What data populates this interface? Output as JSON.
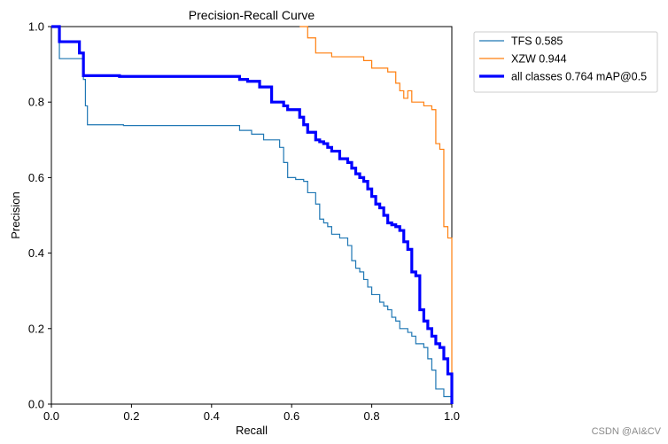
{
  "chart_data": {
    "type": "line",
    "title": "Precision-Recall Curve",
    "xlabel": "Recall",
    "ylabel": "Precision",
    "xlim": [
      0,
      1
    ],
    "ylim": [
      0,
      1
    ],
    "xticks": [
      "0.0",
      "0.2",
      "0.4",
      "0.6",
      "0.8",
      "1.0"
    ],
    "yticks": [
      "0.0",
      "0.2",
      "0.4",
      "0.6",
      "0.8",
      "1.0"
    ],
    "legend_position": "outside-top-right",
    "series": [
      {
        "name": "TFS 0.585",
        "color": "#1f77b4",
        "x": [
          0,
          0.02,
          0.02,
          0.07,
          0.08,
          0.08,
          0.085,
          0.085,
          0.09,
          0.09,
          0.18,
          0.18,
          0.47,
          0.47,
          0.5,
          0.5,
          0.53,
          0.53,
          0.57,
          0.57,
          0.58,
          0.58,
          0.59,
          0.59,
          0.61,
          0.61,
          0.63,
          0.63,
          0.64,
          0.64,
          0.66,
          0.66,
          0.67,
          0.67,
          0.68,
          0.68,
          0.69,
          0.69,
          0.7,
          0.7,
          0.72,
          0.72,
          0.74,
          0.74,
          0.75,
          0.75,
          0.76,
          0.76,
          0.77,
          0.77,
          0.78,
          0.78,
          0.79,
          0.79,
          0.8,
          0.8,
          0.82,
          0.82,
          0.83,
          0.83,
          0.84,
          0.84,
          0.85,
          0.85,
          0.86,
          0.86,
          0.87,
          0.87,
          0.89,
          0.89,
          0.9,
          0.9,
          0.91,
          0.91,
          0.93,
          0.93,
          0.94,
          0.94,
          0.95,
          0.95,
          0.96,
          0.96,
          0.98,
          0.98,
          1.0,
          1.0
        ],
        "y": [
          1.0,
          1.0,
          0.915,
          0.915,
          0.915,
          0.86,
          0.86,
          0.79,
          0.79,
          0.74,
          0.74,
          0.738,
          0.738,
          0.725,
          0.725,
          0.715,
          0.715,
          0.7,
          0.7,
          0.68,
          0.68,
          0.64,
          0.64,
          0.6,
          0.6,
          0.595,
          0.595,
          0.59,
          0.59,
          0.56,
          0.56,
          0.53,
          0.53,
          0.49,
          0.49,
          0.48,
          0.48,
          0.47,
          0.47,
          0.45,
          0.45,
          0.44,
          0.44,
          0.42,
          0.42,
          0.38,
          0.38,
          0.36,
          0.36,
          0.35,
          0.35,
          0.33,
          0.33,
          0.31,
          0.31,
          0.29,
          0.29,
          0.27,
          0.27,
          0.26,
          0.26,
          0.25,
          0.25,
          0.23,
          0.23,
          0.22,
          0.22,
          0.2,
          0.2,
          0.19,
          0.19,
          0.18,
          0.18,
          0.16,
          0.16,
          0.15,
          0.15,
          0.12,
          0.12,
          0.09,
          0.09,
          0.04,
          0.04,
          0.02,
          0.02,
          0.0
        ]
      },
      {
        "name": "XZW 0.944",
        "color": "#ff7f0e",
        "x": [
          0.62,
          0.62,
          0.64,
          0.64,
          0.66,
          0.66,
          0.68,
          0.68,
          0.7,
          0.7,
          0.78,
          0.78,
          0.8,
          0.8,
          0.84,
          0.84,
          0.86,
          0.86,
          0.87,
          0.87,
          0.88,
          0.88,
          0.89,
          0.89,
          0.9,
          0.9,
          0.91,
          0.91,
          0.93,
          0.93,
          0.95,
          0.95,
          0.96,
          0.96,
          0.97,
          0.97,
          0.98,
          0.98,
          0.99,
          0.99,
          1.0,
          1.0
        ],
        "y": [
          1.0,
          1.0,
          1.0,
          0.97,
          0.97,
          0.93,
          0.93,
          0.93,
          0.93,
          0.92,
          0.92,
          0.91,
          0.91,
          0.89,
          0.89,
          0.88,
          0.88,
          0.85,
          0.85,
          0.83,
          0.83,
          0.81,
          0.81,
          0.83,
          0.83,
          0.8,
          0.8,
          0.8,
          0.8,
          0.79,
          0.79,
          0.78,
          0.78,
          0.69,
          0.69,
          0.675,
          0.675,
          0.47,
          0.47,
          0.44,
          0.44,
          0.0
        ]
      },
      {
        "name": "all classes 0.764 mAP@0.5",
        "color": "#0000ff",
        "x": [
          0,
          0.02,
          0.02,
          0.07,
          0.07,
          0.08,
          0.08,
          0.09,
          0.09,
          0.17,
          0.17,
          0.47,
          0.47,
          0.49,
          0.49,
          0.52,
          0.52,
          0.55,
          0.55,
          0.58,
          0.58,
          0.59,
          0.59,
          0.62,
          0.62,
          0.63,
          0.63,
          0.64,
          0.64,
          0.66,
          0.66,
          0.67,
          0.67,
          0.68,
          0.68,
          0.69,
          0.69,
          0.7,
          0.7,
          0.72,
          0.72,
          0.74,
          0.74,
          0.75,
          0.75,
          0.76,
          0.76,
          0.77,
          0.77,
          0.78,
          0.78,
          0.79,
          0.79,
          0.8,
          0.8,
          0.81,
          0.81,
          0.82,
          0.82,
          0.83,
          0.83,
          0.84,
          0.84,
          0.85,
          0.85,
          0.86,
          0.86,
          0.87,
          0.87,
          0.88,
          0.88,
          0.89,
          0.89,
          0.9,
          0.9,
          0.91,
          0.91,
          0.92,
          0.92,
          0.93,
          0.93,
          0.94,
          0.94,
          0.95,
          0.95,
          0.96,
          0.96,
          0.97,
          0.97,
          0.98,
          0.98,
          0.99,
          0.99,
          1.0,
          1.0
        ],
        "y": [
          1.0,
          1.0,
          0.96,
          0.96,
          0.93,
          0.93,
          0.87,
          0.87,
          0.87,
          0.87,
          0.868,
          0.868,
          0.86,
          0.86,
          0.855,
          0.855,
          0.84,
          0.84,
          0.8,
          0.8,
          0.79,
          0.79,
          0.78,
          0.78,
          0.76,
          0.76,
          0.74,
          0.74,
          0.72,
          0.72,
          0.7,
          0.7,
          0.695,
          0.695,
          0.69,
          0.69,
          0.68,
          0.68,
          0.67,
          0.67,
          0.65,
          0.65,
          0.64,
          0.64,
          0.625,
          0.625,
          0.61,
          0.61,
          0.6,
          0.6,
          0.59,
          0.59,
          0.57,
          0.57,
          0.55,
          0.55,
          0.53,
          0.53,
          0.52,
          0.52,
          0.5,
          0.5,
          0.48,
          0.48,
          0.475,
          0.475,
          0.47,
          0.47,
          0.46,
          0.46,
          0.43,
          0.43,
          0.41,
          0.41,
          0.35,
          0.35,
          0.34,
          0.34,
          0.25,
          0.25,
          0.22,
          0.22,
          0.2,
          0.2,
          0.18,
          0.18,
          0.16,
          0.16,
          0.15,
          0.15,
          0.12,
          0.12,
          0.08,
          0.08,
          0.0
        ]
      }
    ]
  },
  "watermark": "CSDN @AI&CV"
}
